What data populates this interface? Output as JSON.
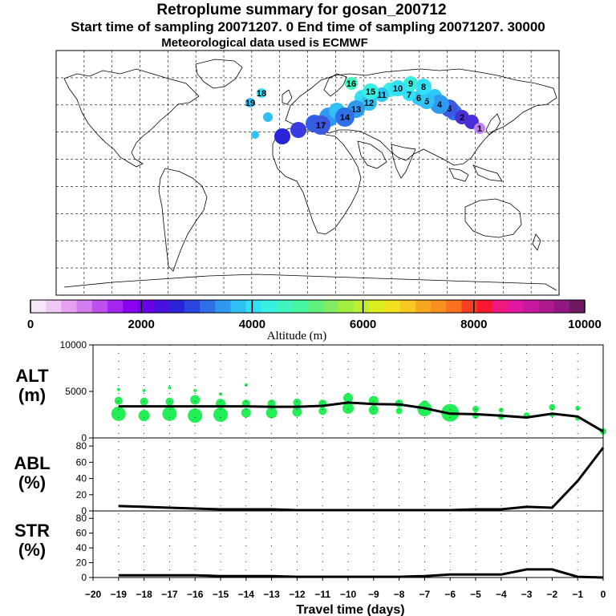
{
  "header": {
    "title": "Retroplume summary for gosan_200712",
    "subtitle": "Start time of sampling 20071207.     0     End time of sampling 20071207. 30000",
    "met_line": "Meteorological data used is ECMWF"
  },
  "colorbar": {
    "ticks": [
      "0",
      "2000",
      "4000",
      "6000",
      "8000",
      "10000"
    ],
    "label": "Altitude  (m)",
    "colors": [
      "#f7e6f7",
      "#f0c8f5",
      "#e6a0f0",
      "#d47ef0",
      "#c050ee",
      "#a526f0",
      "#8a00f0",
      "#6a00e8",
      "#4a10e0",
      "#2a24d8",
      "#2b45e0",
      "#2d70e8",
      "#2f98f0",
      "#30c0f5",
      "#34e0f5",
      "#38f0e0",
      "#40f5c0",
      "#48f5a0",
      "#60f080",
      "#80ee60",
      "#a0ee40",
      "#c0ee30",
      "#dcee20",
      "#f0e020",
      "#f8c820",
      "#f8a820",
      "#f89020",
      "#f87020",
      "#f84020",
      "#f81830",
      "#f01880",
      "#e018a0",
      "#c818a0",
      "#b01890",
      "#901880",
      "#701860"
    ]
  },
  "map": {
    "markers": [
      {
        "label": "1",
        "color": "#c27cff",
        "alt": 700
      },
      {
        "label": "2",
        "color": "#4a2ed8",
        "alt": 2200
      },
      {
        "label": "3",
        "color": "#3a58e0",
        "alt": 2500
      },
      {
        "label": "4",
        "color": "#2f98f0",
        "alt": 2600
      },
      {
        "label": "5",
        "color": "#30c0f5",
        "alt": 3300
      },
      {
        "label": "6",
        "color": "#30c8f5",
        "alt": 3700
      },
      {
        "label": "7",
        "color": "#34e0f5",
        "alt": 3800
      },
      {
        "label": "8",
        "color": "#34e0f5",
        "alt": 3700
      },
      {
        "label": "9",
        "color": "#38eee0",
        "alt": 3900
      },
      {
        "label": "10",
        "color": "#34e0f5",
        "alt": 3700
      },
      {
        "label": "11",
        "color": "#30c8f5",
        "alt": 3600
      },
      {
        "label": "12",
        "color": "#30c0f5",
        "alt": 3400
      },
      {
        "label": "13",
        "color": "#2f98f0",
        "alt": 3400
      },
      {
        "label": "14",
        "color": "#2d70e8",
        "alt": 3300
      },
      {
        "label": "15",
        "color": "#38f0e0",
        "alt": 4000
      },
      {
        "label": "16",
        "color": "#40f5c0",
        "alt": 4200
      },
      {
        "label": "17",
        "color": "#3a58e0",
        "alt": 3300
      },
      {
        "label": "18",
        "color": "#34e0f5",
        "alt": 3500
      },
      {
        "label": "19",
        "color": "#30c0f5",
        "alt": 3400
      }
    ]
  },
  "panels": {
    "alt": {
      "label_top": "ALT",
      "label_bottom": "(m)",
      "ticks": [
        "0",
        "5000",
        "10000"
      ]
    },
    "abl": {
      "label_top": "ABL",
      "label_bottom": "(%)",
      "ticks": [
        "0",
        "20",
        "40",
        "60",
        "80"
      ]
    },
    "str": {
      "label_top": "STR",
      "label_bottom": "(%)",
      "ticks": [
        "0",
        "20",
        "40",
        "60",
        "80"
      ]
    }
  },
  "xaxis": {
    "ticks": [
      "−20",
      "−19",
      "−18",
      "−17",
      "−16",
      "−15",
      "−14",
      "−13",
      "−12",
      "−11",
      "−10",
      "−9",
      "−8",
      "−7",
      "−6",
      "−5",
      "−4",
      "−3",
      "−2",
      "−1",
      "0"
    ],
    "label": "Travel time (days)"
  },
  "chart_data": [
    {
      "type": "line",
      "title": "ALT",
      "xlabel": "Travel time (days)",
      "ylabel": "ALT (m)",
      "xlim": [
        -20,
        0
      ],
      "ylim": [
        0,
        10000
      ],
      "series": [
        {
          "name": "mean altitude",
          "x": [
            -19,
            -18,
            -17,
            -16,
            -15,
            -14,
            -13,
            -12,
            -11,
            -10,
            -9,
            -8,
            -7,
            -6,
            -5,
            -4,
            -3,
            -2,
            -1,
            0
          ],
          "values": [
            3400,
            3400,
            3400,
            3400,
            3400,
            3400,
            3350,
            3350,
            3450,
            3800,
            3650,
            3600,
            3200,
            2600,
            2550,
            2400,
            2200,
            2600,
            2300,
            700
          ]
        },
        {
          "name": "plume altitude clusters",
          "x": [
            -19,
            -19,
            -19,
            -18,
            -18,
            -18,
            -17,
            -17,
            -17,
            -16,
            -16,
            -16,
            -15,
            -15,
            -15,
            -14,
            -14,
            -14,
            -13,
            -13,
            -12,
            -12,
            -11,
            -11,
            -10,
            -10,
            -9,
            -9,
            -8,
            -8,
            -7,
            -7,
            -6,
            -5,
            -5,
            -4,
            -4,
            -3,
            -2,
            -2,
            -1,
            -1,
            0
          ],
          "values": [
            2600,
            4000,
            5200,
            2400,
            3900,
            5100,
            2600,
            3900,
            5400,
            2400,
            4100,
            5100,
            2500,
            3700,
            4700,
            2700,
            3700,
            5700,
            2700,
            3700,
            2800,
            3800,
            2900,
            3700,
            3200,
            4300,
            3000,
            4000,
            2900,
            3700,
            3100,
            3600,
            2700,
            2400,
            3100,
            2300,
            3000,
            2400,
            2500,
            3300,
            2100,
            3200,
            700
          ],
          "sizes": [
            9,
            5,
            2,
            7,
            5,
            2,
            9,
            5,
            2,
            9,
            6,
            2,
            9,
            6,
            2,
            6,
            5,
            2,
            7,
            5,
            6,
            5,
            5,
            5,
            7,
            6,
            6,
            6,
            4,
            5,
            9,
            5,
            11,
            4,
            4,
            4,
            3,
            4,
            3,
            4,
            3,
            3,
            4
          ]
        }
      ]
    },
    {
      "type": "line",
      "title": "ABL",
      "xlabel": "Travel time (days)",
      "ylabel": "ABL (%)",
      "xlim": [
        -20,
        0
      ],
      "ylim": [
        0,
        90
      ],
      "series": [
        {
          "name": "ABL fraction",
          "x": [
            -19,
            -18,
            -17,
            -16,
            -15,
            -14,
            -13,
            -12,
            -11,
            -10,
            -9,
            -8,
            -7,
            -6,
            -5,
            -4,
            -3,
            -2,
            -1,
            0
          ],
          "values": [
            6,
            5,
            4,
            3,
            2,
            2,
            2,
            1,
            1,
            1,
            1,
            1,
            1,
            1,
            2,
            2,
            5,
            4,
            37,
            78
          ]
        }
      ]
    },
    {
      "type": "line",
      "title": "STR",
      "xlabel": "Travel time (days)",
      "ylabel": "STR (%)",
      "xlim": [
        -20,
        0
      ],
      "ylim": [
        0,
        90
      ],
      "series": [
        {
          "name": "stratospheric fraction",
          "x": [
            -19,
            -18,
            -17,
            -16,
            -15,
            -14,
            -13,
            -12,
            -11,
            -10,
            -9,
            -8,
            -7,
            -6,
            -5,
            -4,
            -3,
            -2,
            -1,
            0
          ],
          "values": [
            3,
            3,
            3,
            3,
            2,
            2,
            2,
            1,
            1,
            1,
            1,
            1,
            2,
            4,
            4,
            4,
            11,
            11,
            1,
            0
          ]
        }
      ]
    }
  ]
}
